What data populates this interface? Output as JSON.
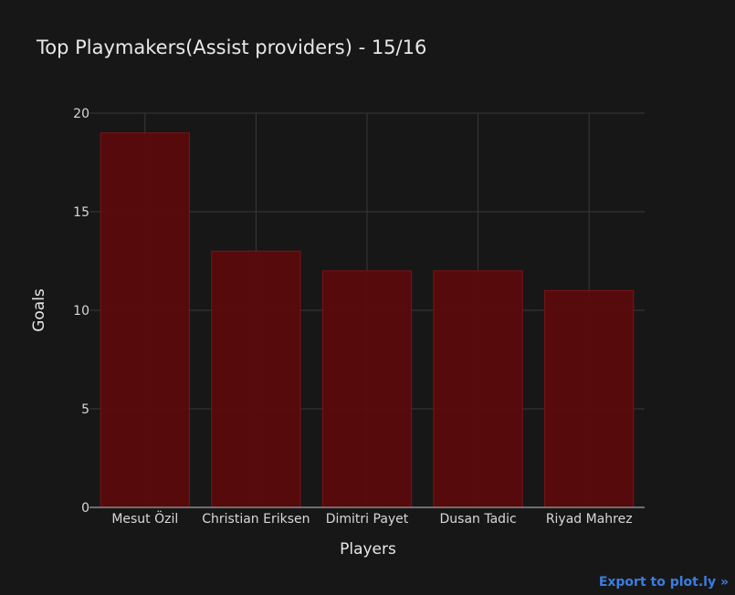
{
  "chart_data": {
    "type": "bar",
    "title": "Top Playmakers(Assist providers) - 15/16",
    "xlabel": "Players",
    "ylabel": "Goals",
    "categories": [
      "Mesut Özil",
      "Christian Eriksen",
      "Dimitri Payet",
      "Dusan Tadic",
      "Riyad Mahrez"
    ],
    "values": [
      19,
      13,
      12,
      12,
      11
    ],
    "ylim": [
      0,
      20
    ],
    "yticks": [
      0,
      5,
      10,
      15,
      20
    ],
    "grid": true,
    "bar_color": "#5a0a0c",
    "bar_edge_color": "#7a1416",
    "background_color": "#171717",
    "grid_color": "#3a3a3a"
  },
  "export_link": {
    "label": "Export to plot.ly »",
    "color": "#3b7de0"
  }
}
